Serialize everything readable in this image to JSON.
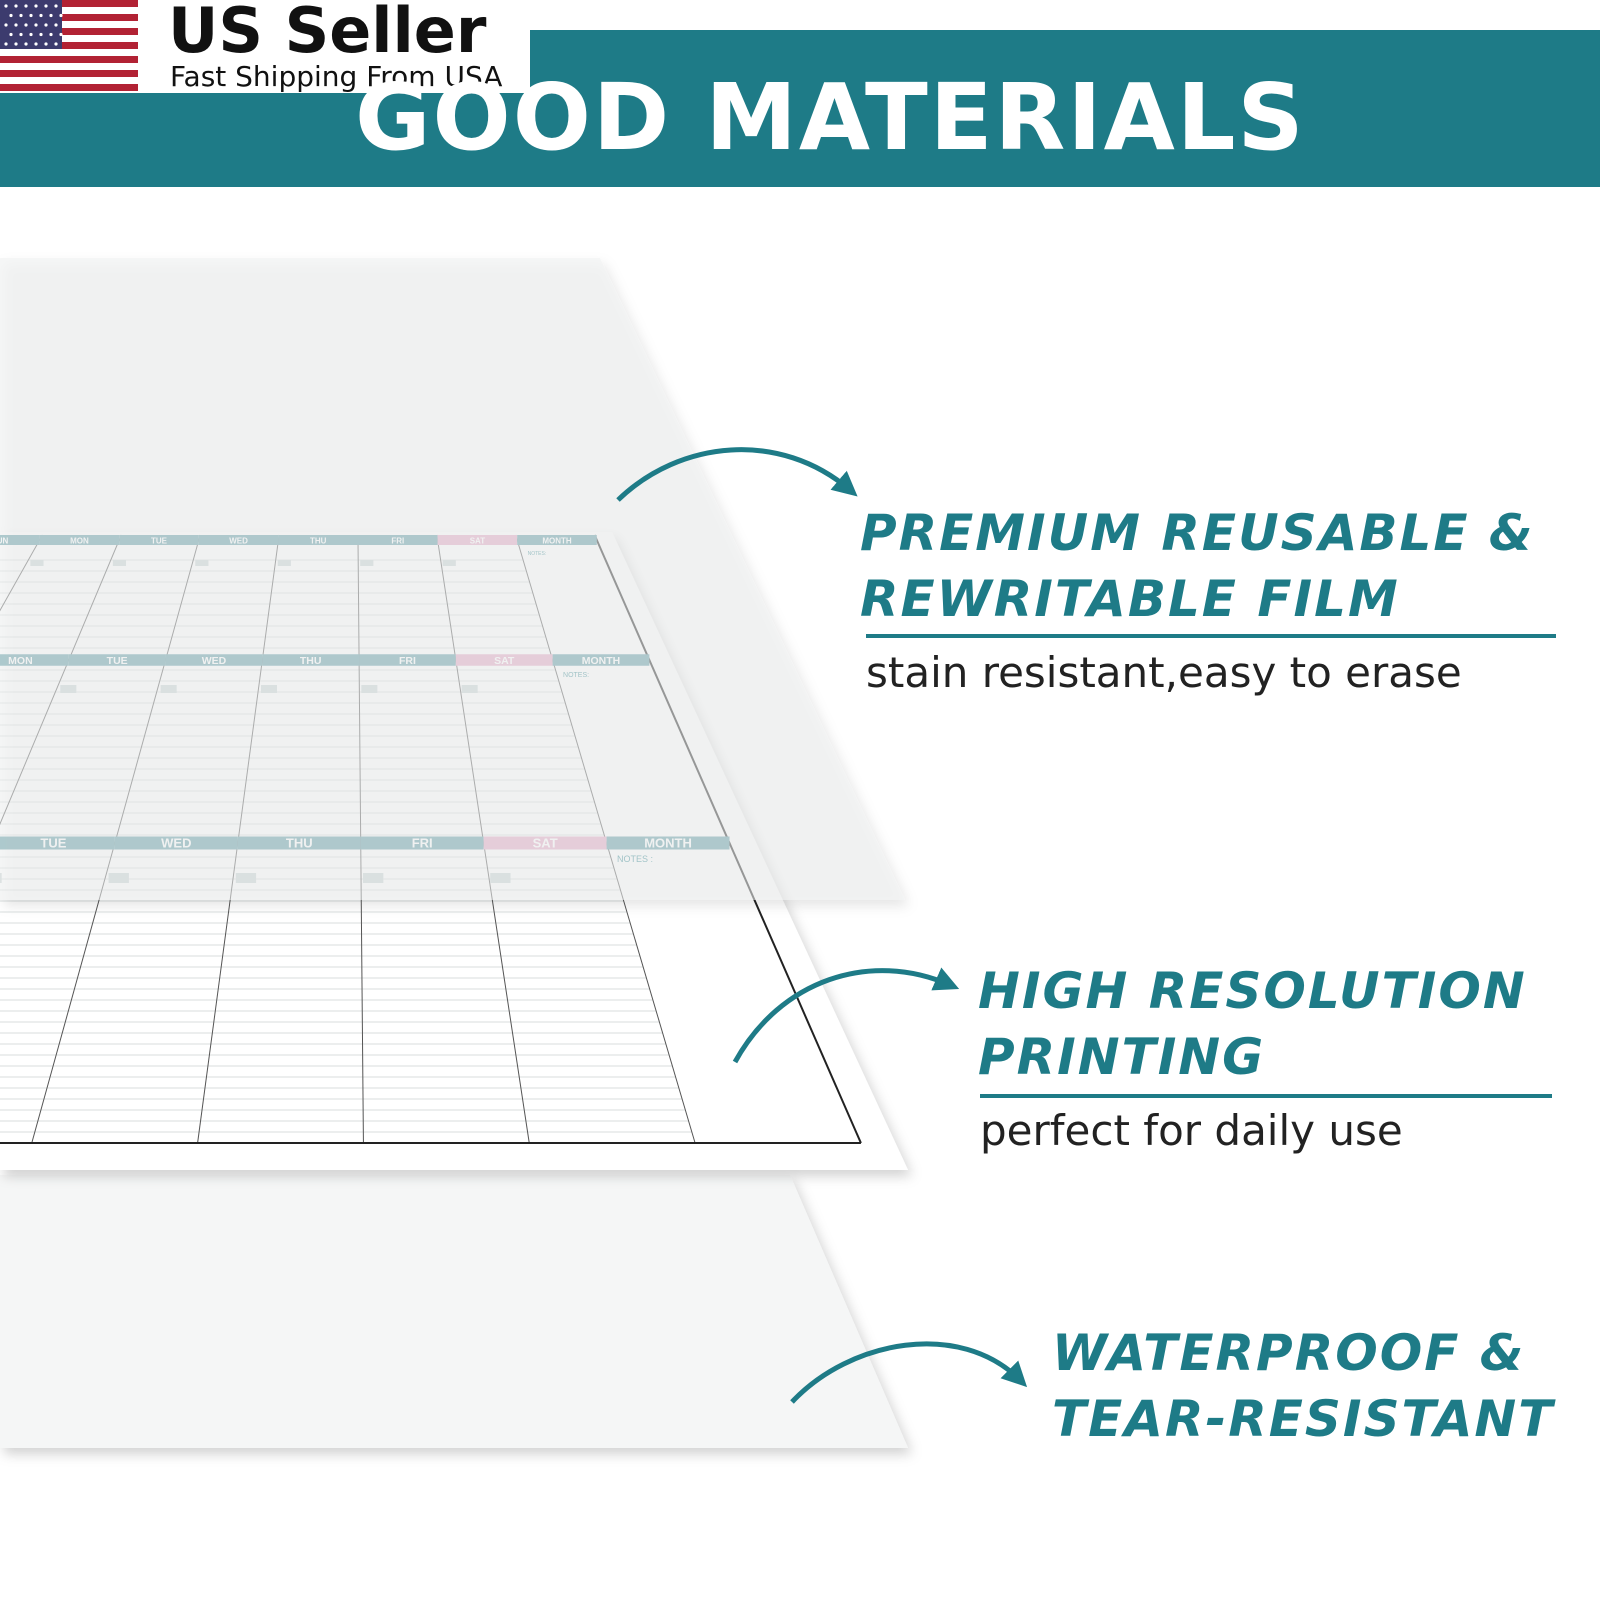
{
  "badge": {
    "title": "US Seller",
    "subtitle": "Fast Shipping From USA"
  },
  "header": {
    "title": "GOOD MATERIALS"
  },
  "features": [
    {
      "title_lines": [
        "PREMIUM REUSABLE &",
        "REWRITABLE FILM"
      ],
      "subtitle": "stain resistant,easy to erase"
    },
    {
      "title_lines": [
        "HIGH RESOLUTION",
        "PRINTING"
      ],
      "subtitle": "perfect for daily use"
    },
    {
      "title_lines": [
        "WATERPROOF &",
        "TEAR-RESISTANT"
      ]
    }
  ],
  "calendar": {
    "rows": [
      {
        "labels": [
          "SUN",
          "MON",
          "TUE",
          "WED",
          "THU",
          "FRI",
          "SAT",
          "MONTH"
        ],
        "notes": "NOTES:"
      },
      {
        "labels": [
          "MON",
          "TUE",
          "WED",
          "THU",
          "FRI",
          "SAT",
          "MONTH"
        ],
        "notes": "NOTES:"
      },
      {
        "labels": [
          "TUE",
          "WED",
          "THU",
          "FRI",
          "SAT",
          "MONTH"
        ],
        "notes": "NOTES :"
      }
    ]
  }
}
